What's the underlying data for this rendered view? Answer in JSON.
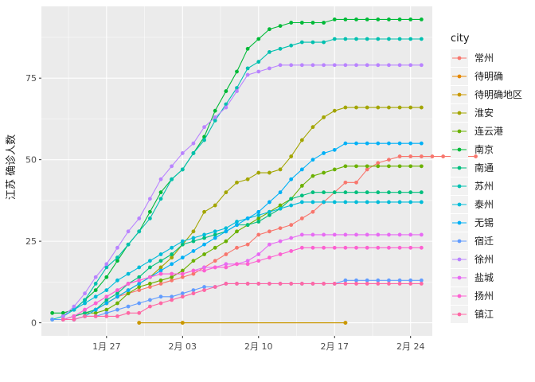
{
  "chart_data": {
    "type": "line",
    "title": "",
    "xlabel": "",
    "ylabel": "江苏 确诊人数",
    "x_axis": {
      "type": "date",
      "range": [
        "2020-01-21",
        "2020-02-26"
      ],
      "ticks": [
        {
          "date": "2020-01-27",
          "label": "1月 27"
        },
        {
          "date": "2020-02-03",
          "label": "2月 03"
        },
        {
          "date": "2020-02-10",
          "label": "2月 10"
        },
        {
          "date": "2020-02-17",
          "label": "2月 17"
        },
        {
          "date": "2020-02-24",
          "label": "2月 24"
        }
      ]
    },
    "y_axis": {
      "range": [
        -4,
        97
      ],
      "ticks": [
        0,
        25,
        50,
        75
      ]
    },
    "grid": true,
    "legend": {
      "title": "city",
      "placement": "right"
    },
    "series": [
      {
        "name": "常州",
        "color": "#F8766D",
        "start": "2020-01-25",
        "values": [
          2,
          4,
          6,
          8,
          9,
          10,
          11,
          12,
          13,
          14,
          15,
          17,
          19,
          21,
          23,
          24,
          27,
          28,
          29,
          30,
          32,
          34,
          37,
          40,
          43,
          43,
          47,
          49,
          50,
          51,
          51,
          51,
          51,
          51,
          51,
          51,
          51
        ]
      },
      {
        "name": "待明确",
        "color": "#E58700",
        "start": "2020-01-30",
        "points": [
          [
            "2020-01-30",
            0
          ],
          [
            "2020-02-03",
            0
          ],
          [
            "2020-02-18",
            0
          ]
        ]
      },
      {
        "name": "待明确地区",
        "color": "#C99800",
        "start": "2020-01-30",
        "points": [
          [
            "2020-01-30",
            0
          ],
          [
            "2020-02-03",
            0
          ],
          [
            "2020-02-18",
            0
          ]
        ]
      },
      {
        "name": "淮安",
        "color": "#A3A500",
        "start": "2020-01-23",
        "values": [
          1,
          2,
          3,
          4,
          6,
          8,
          10,
          12,
          14,
          17,
          20,
          24,
          28,
          34,
          36,
          40,
          43,
          44,
          46,
          46,
          47,
          51,
          56,
          60,
          63,
          65,
          66,
          66,
          66,
          66,
          66,
          66,
          66,
          66
        ]
      },
      {
        "name": "连云港",
        "color": "#6BB100",
        "start": "2020-01-23",
        "values": [
          1,
          2,
          3,
          3,
          4,
          6,
          9,
          11,
          12,
          13,
          14,
          16,
          19,
          21,
          23,
          25,
          28,
          30,
          32,
          34,
          36,
          38,
          42,
          45,
          46,
          47,
          48,
          48,
          48,
          48,
          48,
          48,
          48,
          48
        ]
      },
      {
        "name": "南京",
        "color": "#00BA38",
        "start": "2020-01-22",
        "values": [
          3,
          3,
          4,
          7,
          10,
          14,
          19,
          24,
          28,
          34,
          40,
          44,
          47,
          52,
          57,
          65,
          71,
          77,
          84,
          87,
          90,
          91,
          92,
          92,
          92,
          92,
          93,
          93,
          93,
          93,
          93,
          93,
          93,
          93,
          93
        ]
      },
      {
        "name": "南通",
        "color": "#00BF7D",
        "start": "2020-01-23",
        "values": [
          1,
          2,
          3,
          4,
          7,
          9,
          12,
          14,
          17,
          19,
          21,
          24,
          25,
          26,
          27,
          28,
          30,
          30,
          31,
          33,
          35,
          38,
          39,
          40,
          40,
          40,
          40,
          40,
          40,
          40,
          40,
          40,
          40,
          40
        ]
      },
      {
        "name": "苏州",
        "color": "#00C0AF",
        "start": "2020-01-22",
        "values": [
          1,
          2,
          4,
          7,
          12,
          17,
          20,
          24,
          28,
          32,
          38,
          44,
          47,
          52,
          56,
          62,
          67,
          72,
          78,
          80,
          83,
          84,
          85,
          86,
          86,
          86,
          87,
          87,
          87,
          87,
          87,
          87,
          87,
          87,
          87
        ]
      },
      {
        "name": "泰州",
        "color": "#00BCD8",
        "start": "2020-01-23",
        "values": [
          2,
          4,
          6,
          8,
          10,
          13,
          15,
          17,
          19,
          21,
          23,
          25,
          26,
          27,
          28,
          29,
          31,
          32,
          33,
          34,
          35,
          36,
          37,
          37,
          37,
          37,
          37,
          37,
          37,
          37,
          37,
          37,
          37,
          37
        ]
      },
      {
        "name": "无锡",
        "color": "#00B0F6",
        "start": "2020-01-23",
        "values": [
          1,
          1,
          2,
          4,
          6,
          8,
          10,
          12,
          14,
          16,
          18,
          20,
          22,
          24,
          26,
          28,
          30,
          32,
          34,
          37,
          40,
          44,
          47,
          50,
          52,
          53,
          55,
          55,
          55,
          55,
          55,
          55,
          55,
          55
        ]
      },
      {
        "name": "宿迁",
        "color": "#619CFF",
        "start": "2020-01-22",
        "values": [
          1,
          1,
          1,
          2,
          2,
          3,
          4,
          5,
          6,
          7,
          8,
          8,
          9,
          10,
          11,
          11,
          12,
          12,
          12,
          12,
          12,
          12,
          12,
          12,
          12,
          12,
          12,
          13,
          13,
          13,
          13,
          13,
          13,
          13,
          13
        ]
      },
      {
        "name": "徐州",
        "color": "#B983FF",
        "start": "2020-01-23",
        "values": [
          2,
          5,
          9,
          14,
          18,
          23,
          28,
          32,
          38,
          44,
          48,
          52,
          55,
          60,
          63,
          66,
          71,
          76,
          77,
          78,
          79,
          79,
          79,
          79,
          79,
          79,
          79,
          79,
          79,
          79,
          79,
          79,
          79,
          79
        ]
      },
      {
        "name": "盐城",
        "color": "#E76BF3",
        "start": "2020-01-23",
        "values": [
          1,
          2,
          4,
          6,
          8,
          10,
          12,
          13,
          14,
          15,
          15,
          15,
          16,
          17,
          17,
          18,
          18,
          19,
          21,
          24,
          25,
          26,
          27,
          27,
          27,
          27,
          27,
          27,
          27,
          27,
          27,
          27,
          27,
          27
        ]
      },
      {
        "name": "扬州",
        "color": "#FD61D1",
        "start": "2020-01-23",
        "values": [
          1,
          2,
          4,
          6,
          8,
          10,
          12,
          13,
          14,
          15,
          15,
          15,
          16,
          16,
          17,
          17,
          18,
          18,
          19,
          20,
          21,
          22,
          23,
          23,
          23,
          23,
          23,
          23,
          23,
          23,
          23,
          23,
          23,
          23
        ]
      },
      {
        "name": "镇江",
        "color": "#FF67A4",
        "start": "2020-01-23",
        "values": [
          1,
          1,
          2,
          2,
          2,
          2,
          3,
          3,
          5,
          6,
          7,
          8,
          9,
          10,
          11,
          12,
          12,
          12,
          12,
          12,
          12,
          12,
          12,
          12,
          12,
          12,
          12,
          12,
          12,
          12,
          12,
          12,
          12,
          12
        ]
      }
    ]
  }
}
